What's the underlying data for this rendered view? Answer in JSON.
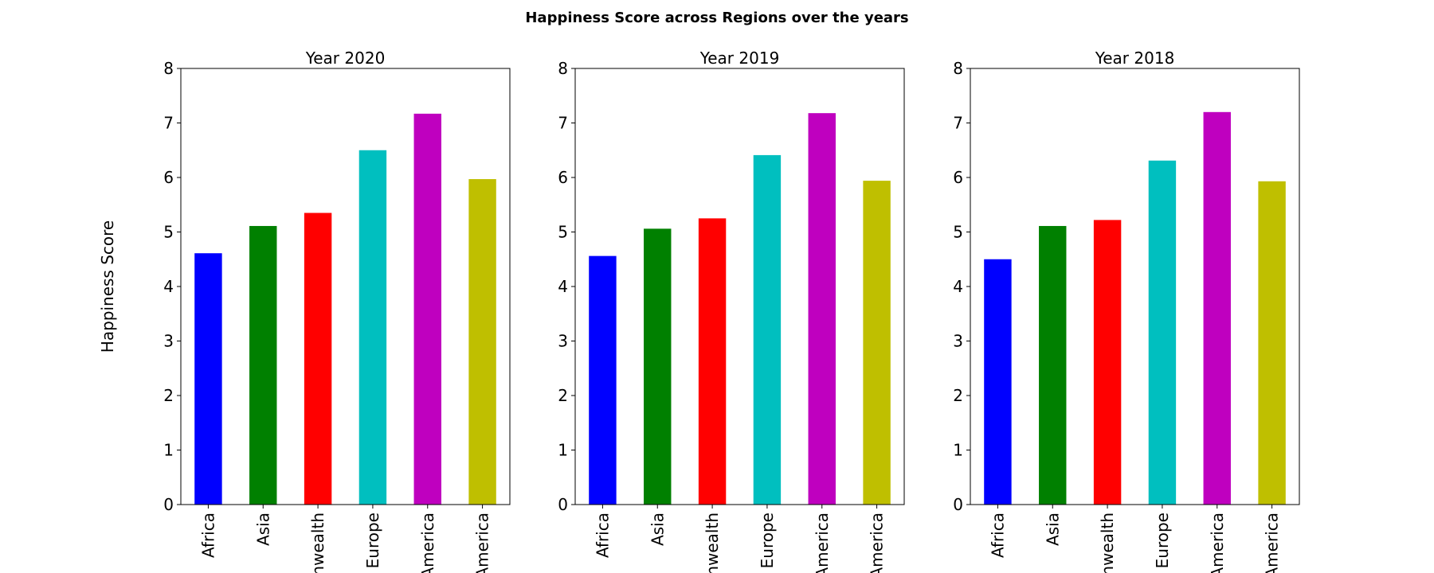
{
  "chart_data": {
    "type": "bar",
    "title": "Happiness Score across Regions over the years",
    "ylabel": "Happiness Score",
    "ylim": [
      0,
      8
    ],
    "yticks": [
      "0",
      "1",
      "2",
      "3",
      "4",
      "5",
      "6",
      "7",
      "8"
    ],
    "categories": [
      "Africa",
      "Asia",
      "nwealth",
      "Europe",
      "America",
      "America"
    ],
    "colors": [
      "#0000ff",
      "#008000",
      "#ff0000",
      "#00bfbf",
      "#bf00bf",
      "#bfbf00"
    ],
    "grid": false,
    "panels": [
      {
        "title": "Year 2020",
        "values": [
          4.61,
          5.11,
          5.35,
          6.5,
          7.17,
          5.97
        ]
      },
      {
        "title": "Year 2019",
        "values": [
          4.56,
          5.06,
          5.25,
          6.41,
          7.18,
          5.94
        ]
      },
      {
        "title": "Year 2018",
        "values": [
          4.5,
          5.11,
          5.22,
          6.31,
          7.2,
          5.93
        ]
      }
    ]
  }
}
